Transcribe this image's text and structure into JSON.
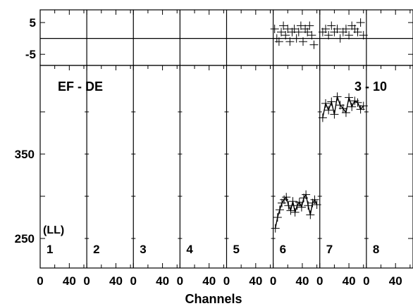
{
  "chart_data": {
    "type": "scatter",
    "title": "",
    "xlabel": "Channels",
    "panel_label": "EF - DE",
    "right_label": "3 - 10",
    "corner_label": "(LL)",
    "x_ticklabels": [
      "0",
      "40"
    ],
    "x_range_per_panel": [
      0,
      64
    ],
    "channels": [
      "1",
      "2",
      "3",
      "4",
      "5",
      "6",
      "7",
      "8"
    ],
    "residual": {
      "ylim": [
        -8.5,
        9
      ],
      "yticks": [
        5,
        -5
      ],
      "ytick_labels": [
        "5",
        "-5"
      ],
      "zero_line": 0,
      "series": [
        {
          "channel": "6",
          "x": [
            2,
            5,
            8,
            11,
            14,
            17,
            20,
            23,
            26,
            29,
            32,
            35,
            38,
            41,
            44,
            47,
            50,
            53,
            56
          ],
          "y": [
            3,
            0,
            -1,
            2,
            4,
            1,
            3,
            -1,
            2,
            3,
            0,
            2,
            4,
            -1,
            3,
            2,
            4,
            1,
            -2
          ]
        },
        {
          "channel": "7",
          "x": [
            4,
            8,
            12,
            16,
            20,
            24,
            28,
            32,
            36,
            40,
            44,
            48,
            52,
            56,
            60
          ],
          "y": [
            2,
            3,
            1,
            4,
            2,
            3,
            0,
            2,
            3,
            1,
            4,
            3,
            2,
            5,
            1
          ]
        }
      ]
    },
    "main": {
      "ylim": [
        215,
        455
      ],
      "yticks": [
        250,
        300,
        350,
        400
      ],
      "ytick_labels": [
        "250",
        "",
        "350",
        ""
      ],
      "series": [
        {
          "channel": "6",
          "x": [
            3,
            6,
            9,
            12,
            15,
            18,
            21,
            24,
            27,
            30,
            33,
            36,
            39,
            42,
            45,
            48,
            51,
            54,
            57,
            60
          ],
          "y": [
            262,
            275,
            284,
            292,
            296,
            299,
            289,
            283,
            294,
            281,
            289,
            293,
            287,
            298,
            302,
            289,
            278,
            292,
            296,
            290
          ]
        },
        {
          "channel": "7",
          "x": [
            4,
            8,
            12,
            16,
            20,
            24,
            28,
            32,
            36,
            40,
            44,
            48,
            52,
            56,
            60
          ],
          "y": [
            393,
            410,
            402,
            412,
            397,
            418,
            408,
            404,
            399,
            417,
            406,
            413,
            411,
            403,
            407
          ]
        }
      ]
    }
  }
}
